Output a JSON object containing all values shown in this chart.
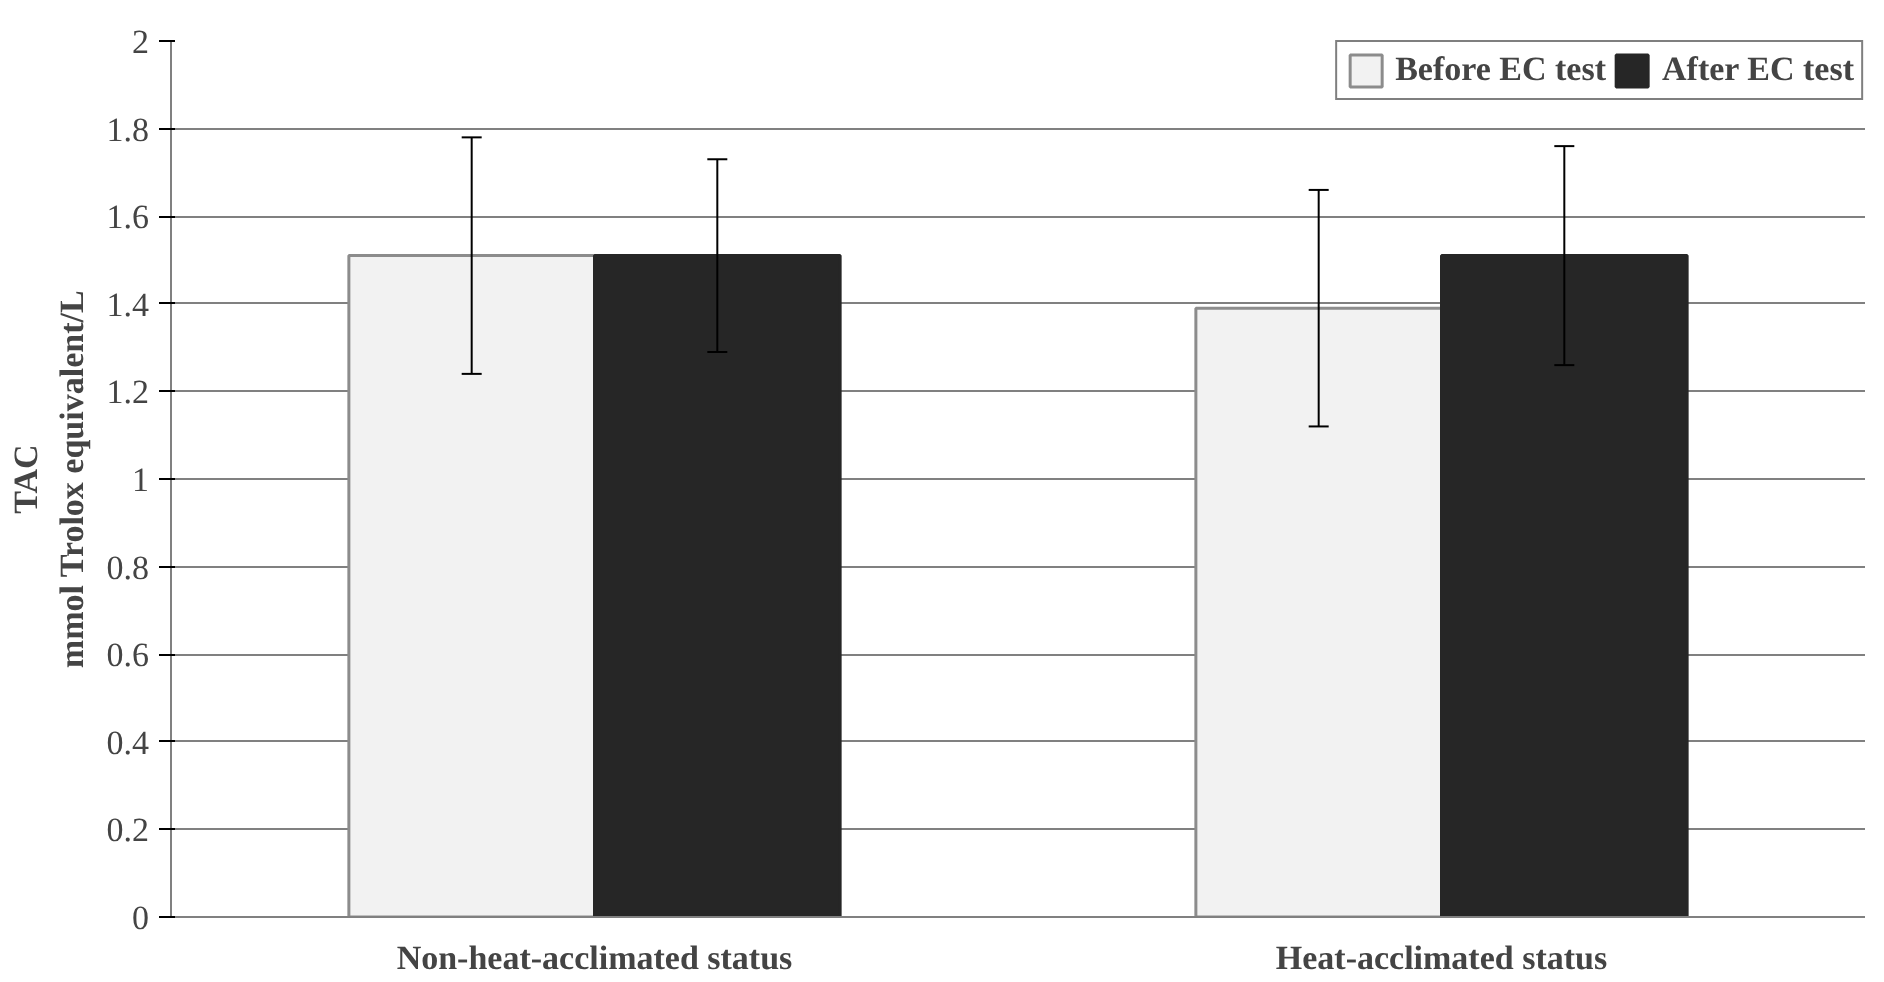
{
  "chart_data": {
    "type": "bar",
    "ylabel": "TAC\nmmol Trolox equivalent/L",
    "categories": [
      "Non-heat-acclimated status",
      "Heat-acclimated status"
    ],
    "series": [
      {
        "name": "Before EC test",
        "color": "#f2f2f2",
        "values": [
          1.51,
          1.39
        ],
        "errors": [
          [
            1.24,
            1.78
          ],
          [
            1.12,
            1.66
          ]
        ]
      },
      {
        "name": "After EC test",
        "color": "#262626",
        "values": [
          1.51,
          1.51
        ],
        "errors": [
          [
            1.29,
            1.73
          ],
          [
            1.26,
            1.76
          ]
        ]
      }
    ],
    "ylim": [
      0,
      2
    ],
    "yticks": [
      0,
      0.2,
      0.4,
      0.6,
      0.8,
      1,
      1.2,
      1.4,
      1.6,
      1.8,
      2
    ],
    "grid": "y",
    "legend": "top right"
  }
}
